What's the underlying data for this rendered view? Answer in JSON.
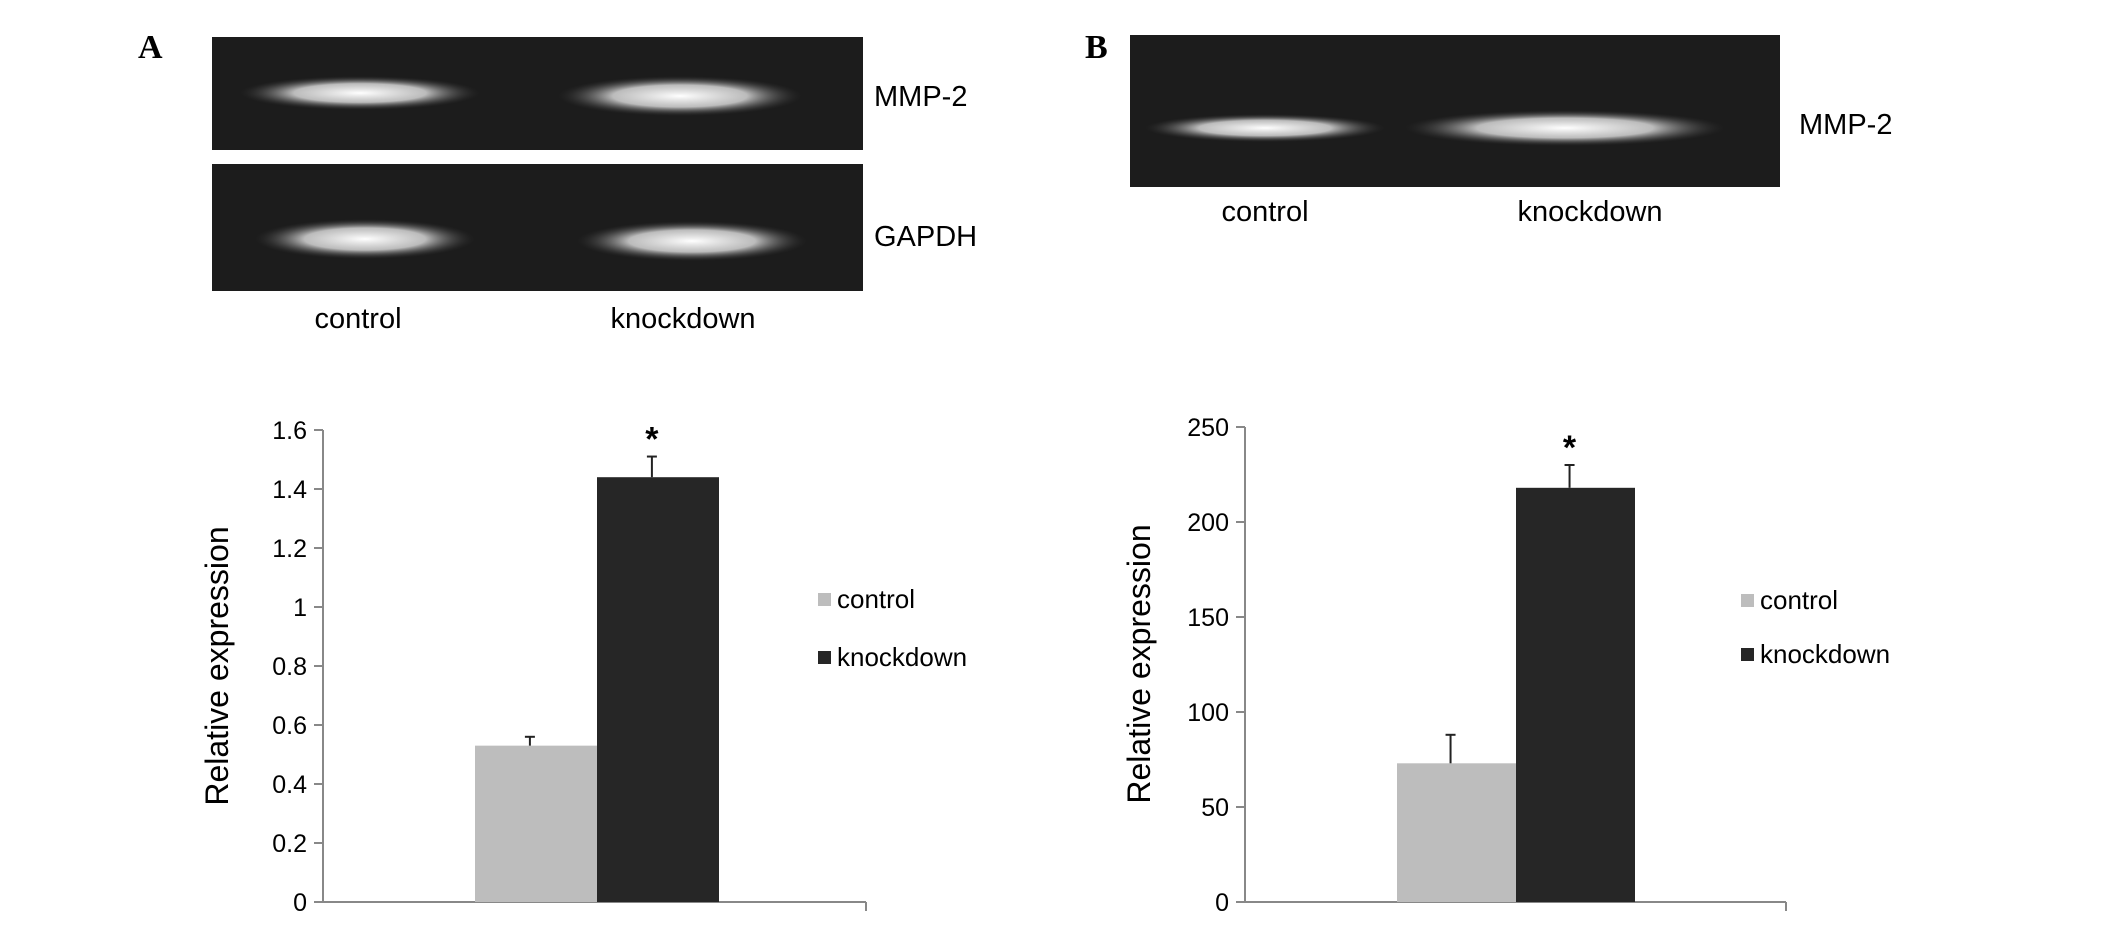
{
  "colors": {
    "control": "#bdbdbd",
    "knockdown": "#262626",
    "axis": "#888888",
    "gel_bg": "#1c1c1c"
  },
  "panels": [
    {
      "letter": "A",
      "gel": {
        "rows": [
          {
            "label": "MMP-2",
            "band_intensity": [
              0.35,
              0.8
            ]
          },
          {
            "label": "GAPDH",
            "band_intensity": [
              0.85,
              0.85
            ]
          }
        ],
        "lanes": [
          "control",
          "knockdown"
        ]
      },
      "chart_data": {
        "type": "bar",
        "title": "",
        "xlabel": "",
        "ylabel": "Relative expression",
        "ylim": [
          0,
          1.6
        ],
        "yticks": [
          0,
          0.2,
          0.4,
          0.6,
          0.8,
          1,
          1.2,
          1.4,
          1.6
        ],
        "yticklabels": [
          "0",
          "0.2",
          "0.4",
          "0.6",
          "0.8",
          "1",
          "1.2",
          "1.4",
          "1.6"
        ],
        "grid": false,
        "legend_position": "right",
        "series": [
          {
            "name": "control",
            "value": 0.53,
            "error": 0.03,
            "annotation": ""
          },
          {
            "name": "knockdown",
            "value": 1.44,
            "error": 0.07,
            "annotation": "*"
          }
        ]
      }
    },
    {
      "letter": "B",
      "gel": {
        "rows": [
          {
            "label": "MMP-2",
            "band_intensity": [
              0.5,
              0.8
            ]
          }
        ],
        "lanes": [
          "control",
          "knockdown"
        ]
      },
      "chart_data": {
        "type": "bar",
        "title": "",
        "xlabel": "",
        "ylabel": "Relative expression",
        "ylim": [
          0,
          250
        ],
        "yticks": [
          0,
          50,
          100,
          150,
          200,
          250
        ],
        "yticklabels": [
          "0",
          "50",
          "100",
          "150",
          "200",
          "250"
        ],
        "grid": false,
        "legend_position": "right",
        "series": [
          {
            "name": "control",
            "value": 73,
            "error": 15,
            "annotation": ""
          },
          {
            "name": "knockdown",
            "value": 218,
            "error": 12,
            "annotation": "*"
          }
        ]
      }
    }
  ]
}
